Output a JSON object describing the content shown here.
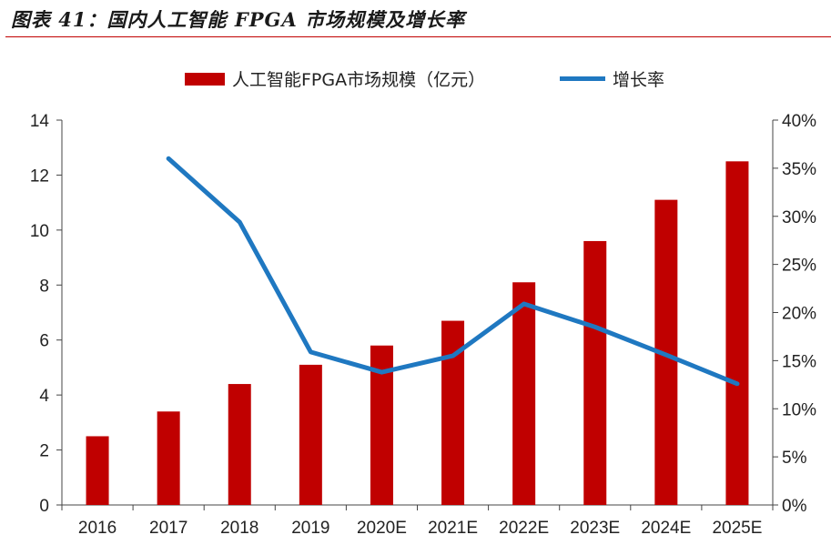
{
  "figure_title": "图表 41：国内人工智能 FPGA 市场规模及增长率",
  "colors": {
    "bar": "#c00000",
    "line": "#1f78c1",
    "title_rule": "#c00000",
    "axis": "#444444"
  },
  "chart_data": {
    "type": "bar+line",
    "categories": [
      "2016",
      "2017",
      "2018",
      "2019",
      "2020E",
      "2021E",
      "2022E",
      "2023E",
      "2024E",
      "2025E"
    ],
    "series": [
      {
        "name": "人工智能FPGA市场规模（亿元）",
        "type": "bar",
        "axis": "left",
        "values": [
          2.5,
          3.4,
          4.4,
          5.1,
          5.8,
          6.7,
          8.1,
          9.6,
          11.1,
          12.5
        ]
      },
      {
        "name": "增长率",
        "type": "line",
        "axis": "right",
        "values": [
          null,
          0.36,
          0.294,
          0.159,
          0.138,
          0.155,
          0.209,
          0.185,
          0.156,
          0.126
        ]
      }
    ],
    "left_axis": {
      "ylim": [
        0,
        14
      ],
      "ticks": [
        "0",
        "2",
        "4",
        "6",
        "8",
        "10",
        "12",
        "14"
      ]
    },
    "right_axis": {
      "ylim": [
        0,
        0.4
      ],
      "ticks": [
        "0%",
        "5%",
        "10%",
        "15%",
        "20%",
        "25%",
        "30%",
        "35%",
        "40%"
      ]
    },
    "legend_position": "top-center",
    "grid": false
  }
}
